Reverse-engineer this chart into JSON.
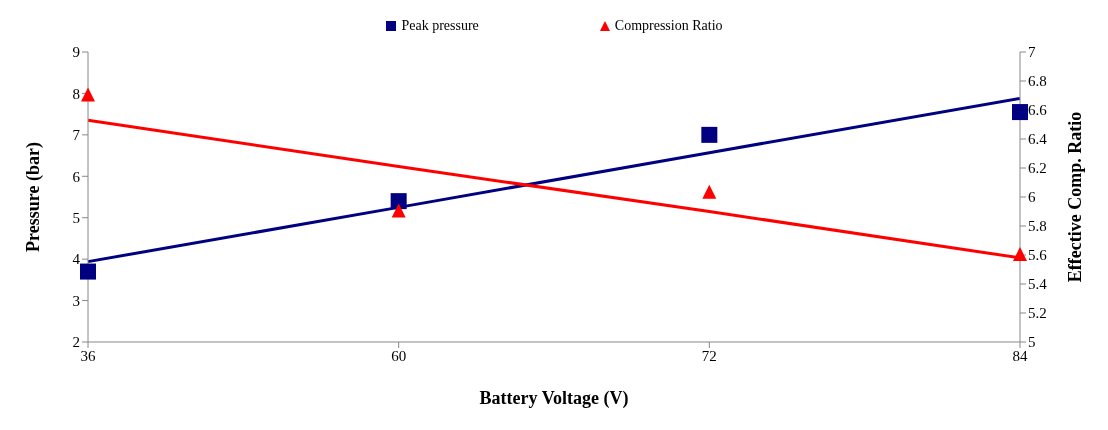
{
  "chart_data": {
    "type": "scatter",
    "xlabel": "Battery Voltage (V)",
    "ylabel": "Pressure (bar)",
    "y2label": "Effective  Comp. Ratio",
    "categories": [
      "36",
      "60",
      "72",
      "84"
    ],
    "series": [
      {
        "name": "Peak pressure",
        "color": "#000080",
        "marker": "square",
        "values": [
          3.7,
          5.4,
          7.0,
          7.55
        ]
      },
      {
        "name": "Compression Ratio",
        "color": "#ff0000",
        "marker": "triangle",
        "axis": "y2",
        "values": [
          6.7,
          5.9,
          6.03,
          5.6
        ]
      },
      {
        "type": "line",
        "color": "#000080",
        "marker": "none",
        "values": [
          3.94,
          5.25,
          6.57,
          7.88
        ]
      },
      {
        "type": "line",
        "color": "#ff0000",
        "marker": "none",
        "axis": "y2",
        "values": [
          6.53,
          6.21,
          5.9,
          5.58
        ]
      }
    ],
    "ylim": [
      2,
      9
    ],
    "yticks": [
      2,
      3,
      4,
      5,
      6,
      7,
      8,
      9
    ],
    "y2lim": [
      5,
      7
    ],
    "y2ticks": [
      5,
      5.2,
      5.4,
      5.6,
      5.8,
      6,
      6.2,
      6.4,
      6.6,
      6.8,
      7
    ],
    "grid": false,
    "legend": "top"
  }
}
